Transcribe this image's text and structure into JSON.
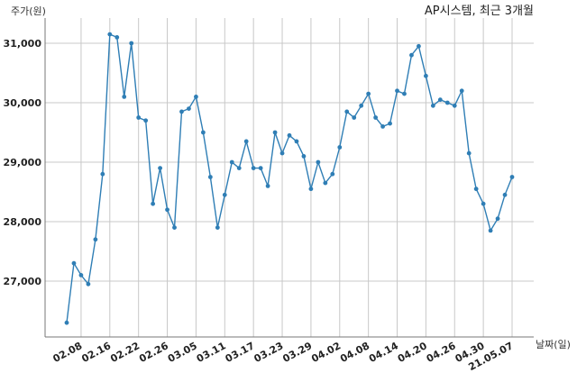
{
  "chart_data": {
    "type": "line",
    "title": "AP시스템, 최근 3개월",
    "xlabel": "날짜(일)",
    "ylabel": "주가(원)",
    "ylim": [
      26000,
      31500
    ],
    "y_ticks": [
      "27,000",
      "28,000",
      "29,000",
      "30,000",
      "31,000"
    ],
    "y_tick_values": [
      27000,
      28000,
      29000,
      30000,
      31000
    ],
    "x_tick_labels": [
      "02.08",
      "02.16",
      "02.22",
      "02.26",
      "03.05",
      "03.11",
      "03.17",
      "03.23",
      "03.29",
      "04.02",
      "04.08",
      "04.14",
      "04.20",
      "04.26",
      "04.30",
      "21.05.07"
    ],
    "x_tick_indices": [
      2,
      6,
      10,
      14,
      18,
      22,
      26,
      30,
      34,
      38,
      42,
      46,
      50,
      54,
      58,
      62
    ],
    "grid": true,
    "series": [
      {
        "color": "#2f7eb5",
        "values": [
          26300,
          27300,
          27100,
          26950,
          27700,
          28800,
          31150,
          31100,
          30100,
          31000,
          29750,
          29700,
          28300,
          28900,
          28200,
          27900,
          29850,
          29900,
          30100,
          29500,
          28750,
          27900,
          28450,
          29000,
          28900,
          29350,
          28900,
          28900,
          28600,
          29500,
          29150,
          29450,
          29350,
          29100,
          28550,
          29000,
          28650,
          28800,
          29250,
          29850,
          29750,
          29950,
          30150,
          29750,
          29600,
          29650,
          30200,
          30150,
          30800,
          30950,
          30450,
          29950,
          30050,
          30000,
          29950,
          30200,
          29150,
          28550,
          28300,
          27850,
          28050,
          28450,
          28750
        ]
      }
    ]
  }
}
